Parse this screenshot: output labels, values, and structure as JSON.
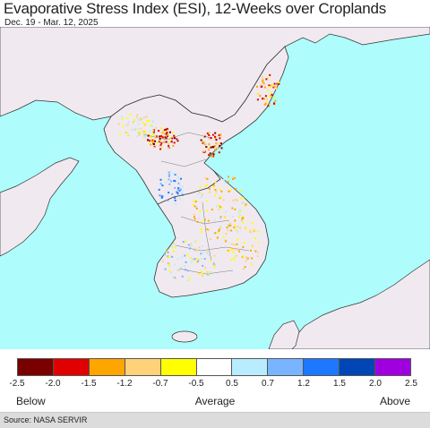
{
  "header": {
    "title": "Evaporative Stress Index (ESI), 12-Weeks over Croplands",
    "subtitle": "Dec. 19 - Mar. 12, 2025"
  },
  "map": {
    "water_color": "#aefcfc",
    "land_color": "#f0eaf0",
    "border_color": "#333333"
  },
  "legend": {
    "colors": [
      "#7a0000",
      "#e00000",
      "#ffa500",
      "#ffd27a",
      "#ffff00",
      "#ffffff",
      "#b8ecff",
      "#78b4ff",
      "#1e78ff",
      "#0046b4",
      "#a000e0"
    ],
    "ticks": [
      "-2.5",
      "-2.0",
      "-1.5",
      "-1.2",
      "-0.7",
      "-0.5",
      "0.5",
      "0.7",
      "1.2",
      "1.5",
      "2.0",
      "2.5"
    ],
    "below_label": "Below",
    "average_label": "Average",
    "above_label": "Above"
  },
  "footer": {
    "source": "Source: NASA SERVIR"
  }
}
